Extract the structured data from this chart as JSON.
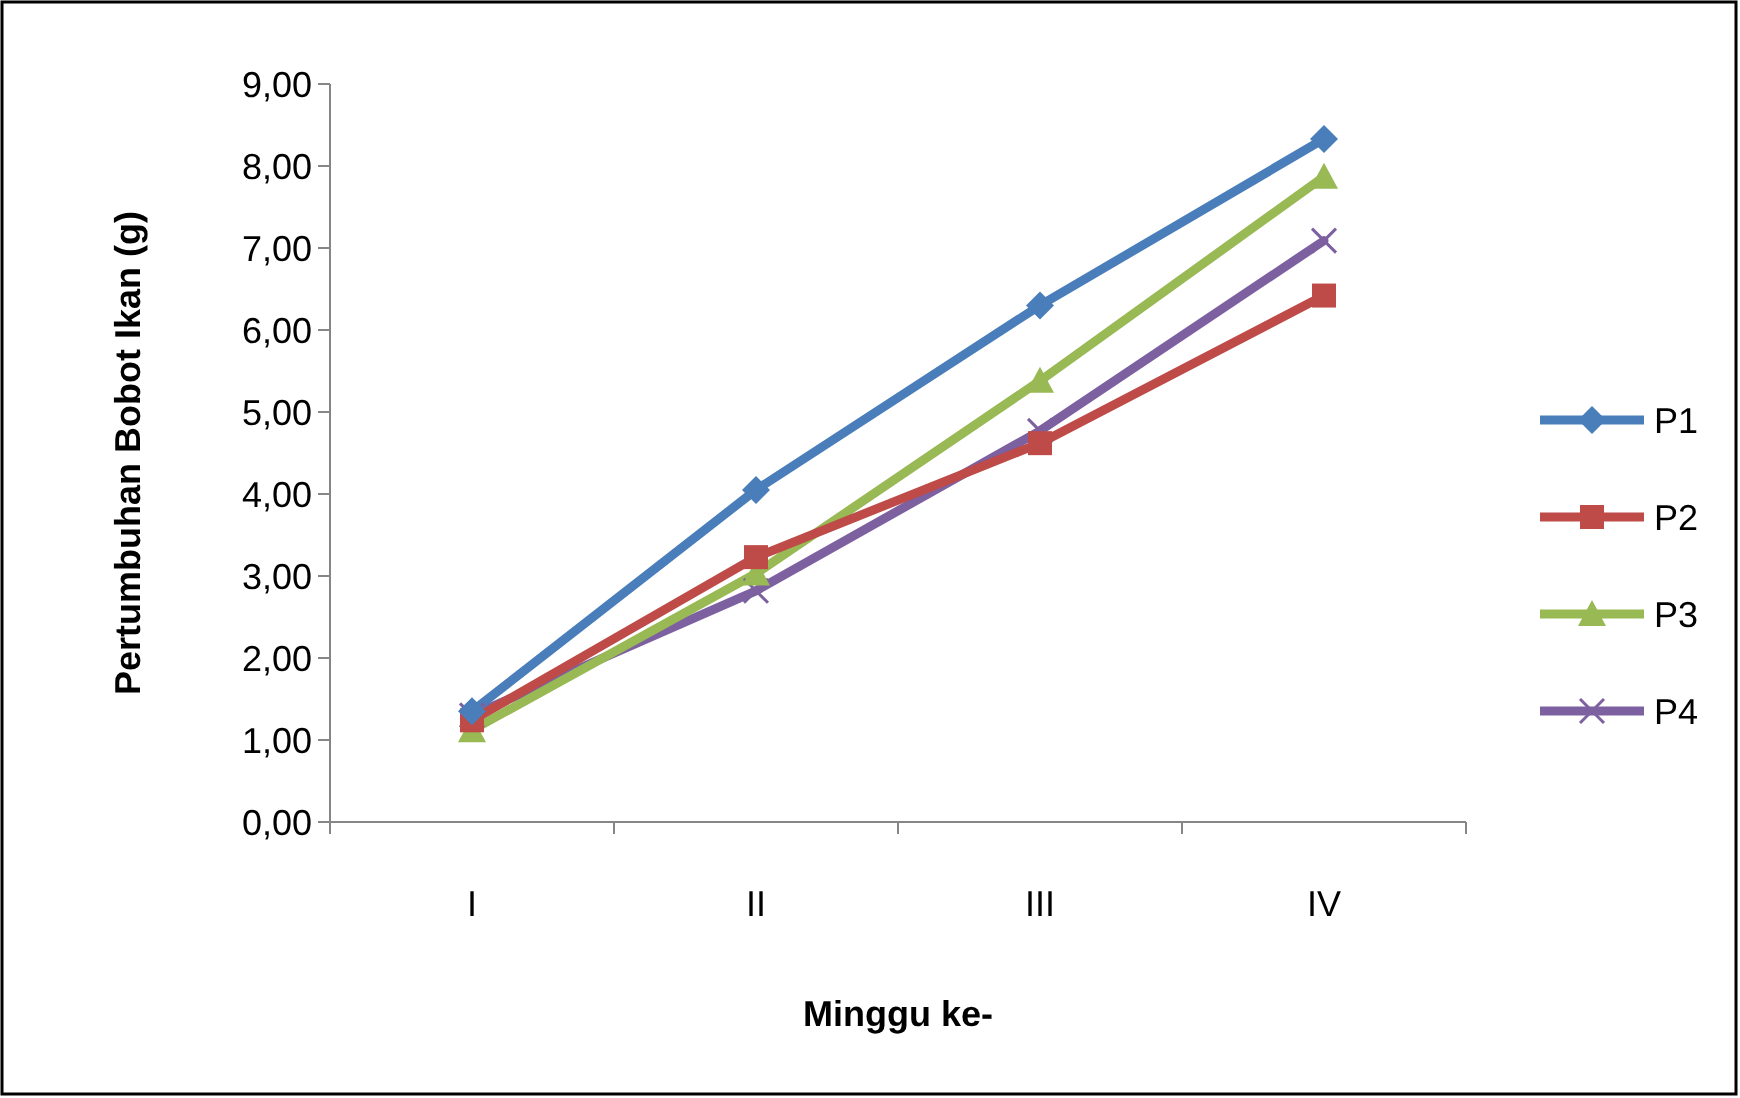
{
  "chart_data": {
    "type": "line",
    "xlabel": "Minggu ke-",
    "ylabel": "Pertumbuhan Bobot Ikan (g)",
    "categories": [
      "I",
      "II",
      "III",
      "IV"
    ],
    "series": [
      {
        "name": "P1",
        "color": "#4a7ebb",
        "marker": "diamond",
        "values": [
          1.35,
          4.05,
          6.3,
          8.33
        ]
      },
      {
        "name": "P2",
        "color": "#be4b48",
        "marker": "square",
        "values": [
          1.24,
          3.23,
          4.62,
          6.42
        ]
      },
      {
        "name": "P3",
        "color": "#98b954",
        "marker": "triangle",
        "values": [
          1.12,
          3.03,
          5.38,
          7.87
        ]
      },
      {
        "name": "P4",
        "color": "#7d60a0",
        "marker": "cross",
        "values": [
          1.3,
          2.82,
          4.77,
          7.09
        ]
      }
    ],
    "ylim": [
      0,
      9
    ],
    "yticks": [
      {
        "value": 0,
        "label": "0,00"
      },
      {
        "value": 1,
        "label": "1,00"
      },
      {
        "value": 2,
        "label": "2,00"
      },
      {
        "value": 3,
        "label": "3,00"
      },
      {
        "value": 4,
        "label": "4,00"
      },
      {
        "value": 5,
        "label": "5,00"
      },
      {
        "value": 6,
        "label": "6,00"
      },
      {
        "value": 7,
        "label": "7,00"
      },
      {
        "value": 8,
        "label": "8,00"
      },
      {
        "value": 9,
        "label": "9,00"
      }
    ],
    "grid": false,
    "legend": "right"
  }
}
